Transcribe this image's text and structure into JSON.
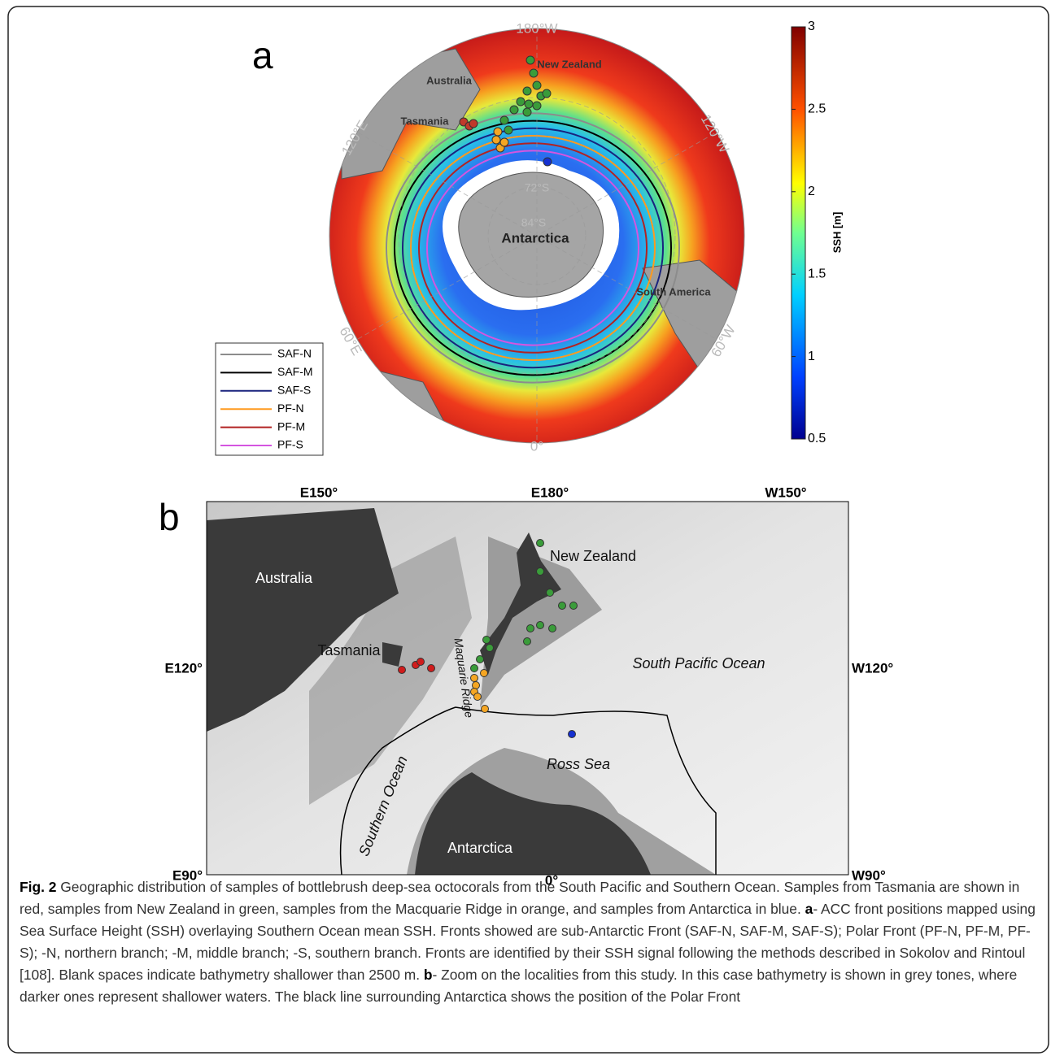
{
  "panel_a": {
    "label": "a",
    "graticule": [
      "180°W",
      "120°W",
      "60°W",
      "0°",
      "60°E",
      "120°E",
      "72°S",
      "84°S"
    ],
    "places": [
      "New Zealand",
      "Australia",
      "Tasmania",
      "Antarctica",
      "South America"
    ],
    "fronts": [
      {
        "name": "SAF-N",
        "color": "#8c8c8c"
      },
      {
        "name": "SAF-M",
        "color": "#000000"
      },
      {
        "name": "SAF-S",
        "color": "#1a237e"
      },
      {
        "name": "PF-N",
        "color": "#ff9a1f"
      },
      {
        "name": "PF-M",
        "color": "#b22222"
      },
      {
        "name": "PF-S",
        "color": "#d455e0"
      }
    ],
    "colorbar": {
      "label": "SSH [m]",
      "lim": [
        0.5,
        3
      ],
      "ticks": [
        0.5,
        1,
        1.5,
        2,
        2.5,
        3
      ]
    }
  },
  "panel_b": {
    "label": "b",
    "axis_labels": [
      "E150°",
      "E180°",
      "W150°",
      "E120°",
      "W120°",
      "E90°",
      "W90°",
      "0°"
    ],
    "places": [
      "Australia",
      "New Zealand",
      "Tasmania",
      "Maquarie Ridge",
      "South Pacific Ocean",
      "Ross Sea",
      "Southern Ocean",
      "Antarctica"
    ]
  },
  "caption": {
    "label": "Fig. 2",
    "parts": [
      "Geographic distribution of samples of bottlebrush deep-sea octocorals from the South Pacific and Southern Ocean. Samples from Tasmania are shown in red, samples from New Zealand in green, samples from the Macquarie Ridge in orange, and samples from Antarctica in blue. ",
      "a",
      "- ACC front positions mapped using Sea Surface Height (SSH) overlaying Southern Ocean mean SSH. Fronts showed are sub-Antarctic Front (SAF-N, SAF-M, SAF-S); Polar Front (PF-N, PF-M, PF-S); -N, northern branch; -M, middle branch; -S, southern branch. Fronts are identified by their SSH signal following the methods described in Sokolov and Rintoul [108]. Blank spaces indicate bathymetry shallower than 2500 m. ",
      "b",
      "- Zoom on the localities from this study. In this case bathymetry is shown in grey tones, where darker ones represent shallower waters. The black line surrounding Antarctica shows the position of the Polar Front"
    ]
  }
}
